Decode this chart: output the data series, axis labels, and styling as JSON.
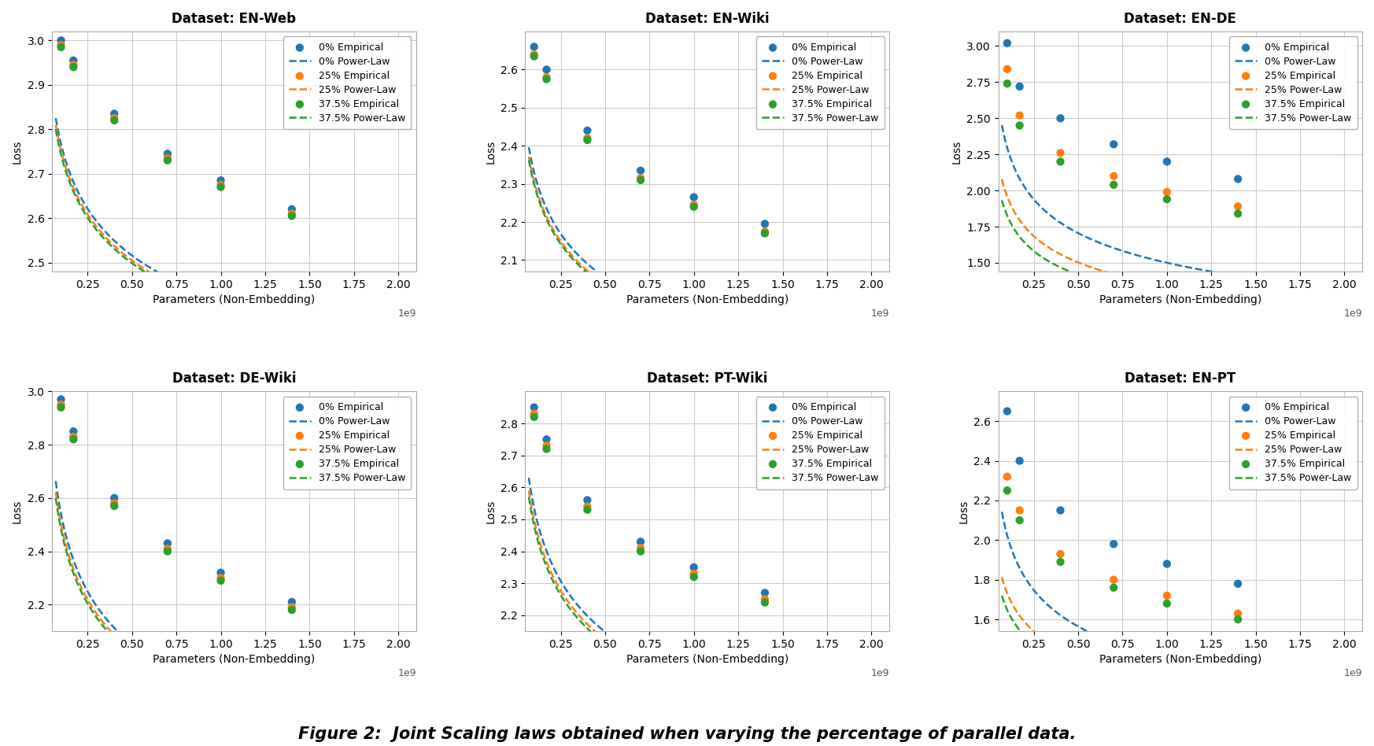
{
  "subplots": [
    {
      "title": "Dataset: EN-Web",
      "ylim": [
        2.48,
        3.02
      ],
      "yticks": [
        2.5,
        2.6,
        2.7,
        2.8,
        2.9,
        3.0
      ],
      "series": {
        "0": {
          "emp_x": [
            0.1,
            0.17,
            0.4,
            0.7,
            1.0,
            1.4
          ],
          "emp_y": [
            3.0,
            2.955,
            2.835,
            2.745,
            2.685,
            2.62
          ],
          "pw_a": 2.415,
          "pw_b": 0.059
        },
        "25": {
          "emp_x": [
            0.1,
            0.17,
            0.4,
            0.7,
            1.0,
            1.4
          ],
          "emp_y": [
            2.99,
            2.945,
            2.825,
            2.735,
            2.675,
            2.61
          ],
          "pw_a": 2.405,
          "pw_b": 0.0585
        },
        "37.5": {
          "emp_x": [
            0.1,
            0.17,
            0.4,
            0.7,
            1.0,
            1.4
          ],
          "emp_y": [
            2.985,
            2.94,
            2.82,
            2.73,
            2.67,
            2.605
          ],
          "pw_a": 2.4,
          "pw_b": 0.058
        }
      }
    },
    {
      "title": "Dataset: EN-Wiki",
      "ylim": [
        2.07,
        2.7
      ],
      "yticks": [
        2.1,
        2.2,
        2.3,
        2.4,
        2.5,
        2.6
      ],
      "series": {
        "0": {
          "emp_x": [
            0.1,
            0.17,
            0.4,
            0.7,
            1.0,
            1.4
          ],
          "emp_y": [
            2.66,
            2.6,
            2.44,
            2.335,
            2.265,
            2.195
          ],
          "pw_a": 1.945,
          "pw_b": 0.0785
        },
        "25": {
          "emp_x": [
            0.1,
            0.17,
            0.4,
            0.7,
            1.0,
            1.4
          ],
          "emp_y": [
            2.64,
            2.58,
            2.42,
            2.315,
            2.245,
            2.175
          ],
          "pw_a": 1.93,
          "pw_b": 0.0775
        },
        "37.5": {
          "emp_x": [
            0.1,
            0.17,
            0.4,
            0.7,
            1.0,
            1.4
          ],
          "emp_y": [
            2.635,
            2.575,
            2.415,
            2.31,
            2.24,
            2.17
          ],
          "pw_a": 1.925,
          "pw_b": 0.077
        }
      }
    },
    {
      "title": "Dataset: EN-DE",
      "ylim": [
        1.44,
        3.1
      ],
      "yticks": [
        1.5,
        1.75,
        2.0,
        2.25,
        2.5,
        2.75,
        3.0
      ],
      "series": {
        "0": {
          "emp_x": [
            0.1,
            0.17,
            0.4,
            0.7,
            1.0,
            1.4
          ],
          "emp_y": [
            3.02,
            2.72,
            2.5,
            2.32,
            2.2,
            2.08
          ],
          "pw_a": 1.5,
          "pw_b": 0.185
        },
        "25": {
          "emp_x": [
            0.1,
            0.17,
            0.4,
            0.7,
            1.0,
            1.4
          ],
          "emp_y": [
            2.84,
            2.52,
            2.26,
            2.1,
            1.99,
            1.89
          ],
          "pw_a": 1.34,
          "pw_b": 0.165
        },
        "37.5": {
          "emp_x": [
            0.1,
            0.17,
            0.4,
            0.7,
            1.0,
            1.4
          ],
          "emp_y": [
            2.74,
            2.45,
            2.2,
            2.04,
            1.94,
            1.84
          ],
          "pw_a": 1.27,
          "pw_b": 0.158
        }
      }
    },
    {
      "title": "Dataset: DE-Wiki",
      "ylim": [
        2.1,
        3.0
      ],
      "yticks": [
        2.2,
        2.4,
        2.6,
        2.8,
        3.0
      ],
      "series": {
        "0": {
          "emp_x": [
            0.1,
            0.17,
            0.4,
            0.7,
            1.0,
            1.4
          ],
          "emp_y": [
            2.97,
            2.85,
            2.6,
            2.43,
            2.32,
            2.21
          ],
          "pw_a": 1.87,
          "pw_b": 0.133
        },
        "25": {
          "emp_x": [
            0.1,
            0.17,
            0.4,
            0.7,
            1.0,
            1.4
          ],
          "emp_y": [
            2.95,
            2.83,
            2.58,
            2.41,
            2.3,
            2.19
          ],
          "pw_a": 1.85,
          "pw_b": 0.131
        },
        "37.5": {
          "emp_x": [
            0.1,
            0.17,
            0.4,
            0.7,
            1.0,
            1.4
          ],
          "emp_y": [
            2.94,
            2.82,
            2.57,
            2.4,
            2.29,
            2.18
          ],
          "pw_a": 1.84,
          "pw_b": 0.13
        }
      }
    },
    {
      "title": "Dataset: PT-Wiki",
      "ylim": [
        2.15,
        2.9
      ],
      "yticks": [
        2.2,
        2.3,
        2.4,
        2.5,
        2.6,
        2.7,
        2.8
      ],
      "series": {
        "0": {
          "emp_x": [
            0.1,
            0.17,
            0.4,
            0.7,
            1.0,
            1.4
          ],
          "emp_y": [
            2.85,
            2.75,
            2.56,
            2.43,
            2.35,
            2.27
          ],
          "pw_a": 2.0,
          "pw_b": 0.103
        },
        "25": {
          "emp_x": [
            0.1,
            0.17,
            0.4,
            0.7,
            1.0,
            1.4
          ],
          "emp_y": [
            2.83,
            2.73,
            2.54,
            2.41,
            2.33,
            2.25
          ],
          "pw_a": 1.98,
          "pw_b": 0.101
        },
        "37.5": {
          "emp_x": [
            0.1,
            0.17,
            0.4,
            0.7,
            1.0,
            1.4
          ],
          "emp_y": [
            2.82,
            2.72,
            2.53,
            2.4,
            2.32,
            2.24
          ],
          "pw_a": 1.97,
          "pw_b": 0.1
        }
      }
    },
    {
      "title": "Dataset: EN-PT",
      "ylim": [
        1.54,
        2.75
      ],
      "yticks": [
        1.6,
        1.8,
        2.0,
        2.2,
        2.4,
        2.6
      ],
      "series": {
        "0": {
          "emp_x": [
            0.1,
            0.17,
            0.4,
            0.7,
            1.0,
            1.4
          ],
          "emp_y": [
            2.65,
            2.4,
            2.15,
            1.98,
            1.88,
            1.78
          ],
          "pw_a": 1.4,
          "pw_b": 0.16
        },
        "25": {
          "emp_x": [
            0.1,
            0.17,
            0.4,
            0.7,
            1.0,
            1.4
          ],
          "emp_y": [
            2.32,
            2.15,
            1.93,
            1.8,
            1.72,
            1.63
          ],
          "pw_a": 1.29,
          "pw_b": 0.128
        },
        "37.5": {
          "emp_x": [
            0.1,
            0.17,
            0.4,
            0.7,
            1.0,
            1.4
          ],
          "emp_y": [
            2.25,
            2.1,
            1.89,
            1.76,
            1.68,
            1.6
          ],
          "pw_a": 1.25,
          "pw_b": 0.12
        }
      }
    }
  ],
  "colors": {
    "0": "#1f77b4",
    "25": "#ff7f0e",
    "37.5": "#2ca02c"
  },
  "xlabel": "Parameters (Non-Embedding)",
  "ylabel": "Loss",
  "xticks": [
    0.25,
    0.5,
    0.75,
    1.0,
    1.25,
    1.5,
    1.75,
    2.0
  ],
  "xlim": [
    0.05,
    2.1
  ],
  "caption": "Figure 2:  Joint Scaling laws obtained when varying the percentage of parallel data."
}
